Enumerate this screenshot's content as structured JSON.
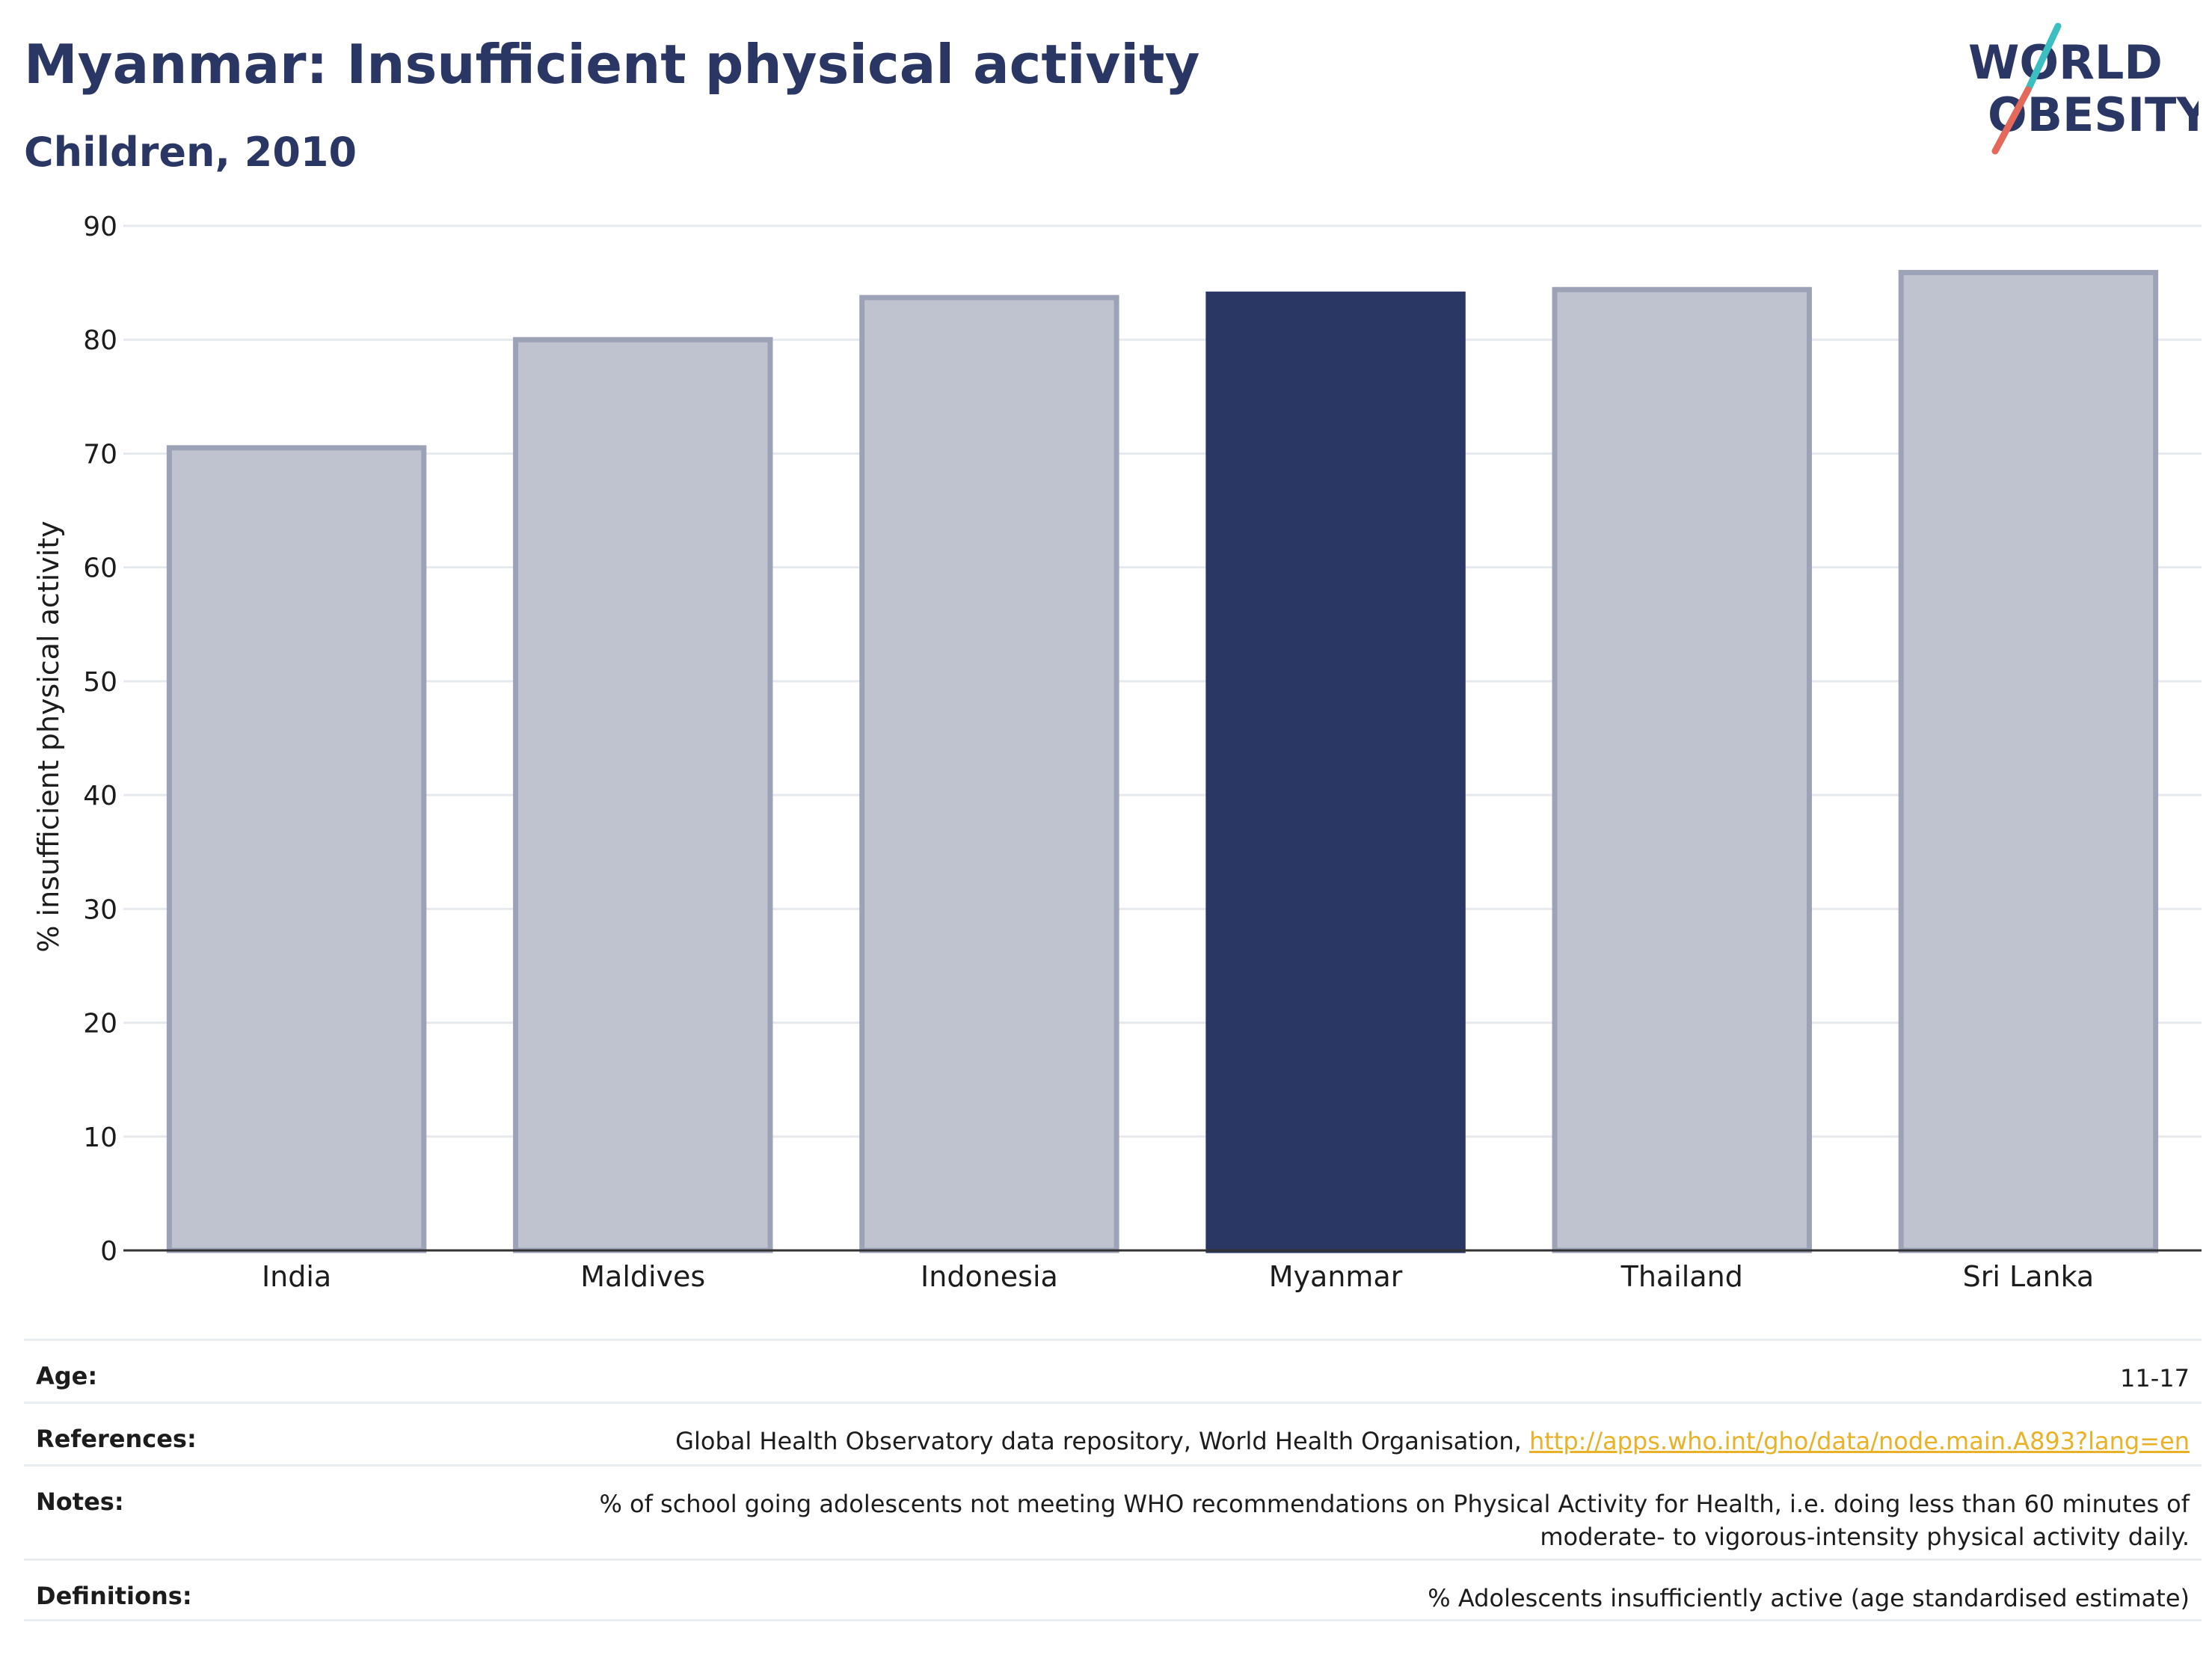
{
  "header": {
    "title": "Myanmar: Insufficient physical activity",
    "subtitle": "Children, 2010"
  },
  "logo": {
    "line1": "WORLD",
    "line2": "OBESITY",
    "accent_teal": "#3bbfc1",
    "accent_red": "#e4695a"
  },
  "chart_data": {
    "type": "bar",
    "categories": [
      "India",
      "Maldives",
      "Indonesia",
      "Myanmar",
      "Thailand",
      "Sri Lanka"
    ],
    "values": [
      70.5,
      80.0,
      83.7,
      84.0,
      84.4,
      85.9
    ],
    "highlight": "Myanmar",
    "ylabel": "% insufficient physical activity",
    "xlabel": "",
    "ylim": [
      0,
      90
    ],
    "yticks": [
      0,
      10,
      20,
      30,
      40,
      50,
      60,
      70,
      80,
      90
    ],
    "grid": true,
    "colors": {
      "highlight": "#2a3663",
      "other": "#bfc3cf",
      "other_border": "#9da3b7",
      "grid": "#e6e9ee",
      "axis": "#333333"
    }
  },
  "info": {
    "age_label": "Age:",
    "age_value": "11-17",
    "references_label": "References:",
    "references_text": "Global Health Observatory data repository, World Health Organisation, ",
    "references_link": "http://apps.who.int/gho/data/node.main.A893?lang=en",
    "notes_label": "Notes:",
    "notes_line1": "% of school going adolescents not meeting WHO recommendations on Physical Activity for Health, i.e. doing less than 60 minutes of",
    "notes_line2": "moderate- to vigorous-intensity physical activity daily.",
    "definitions_label": "Definitions:",
    "definitions_value": "% Adolescents insufficiently active (age standardised estimate)"
  }
}
